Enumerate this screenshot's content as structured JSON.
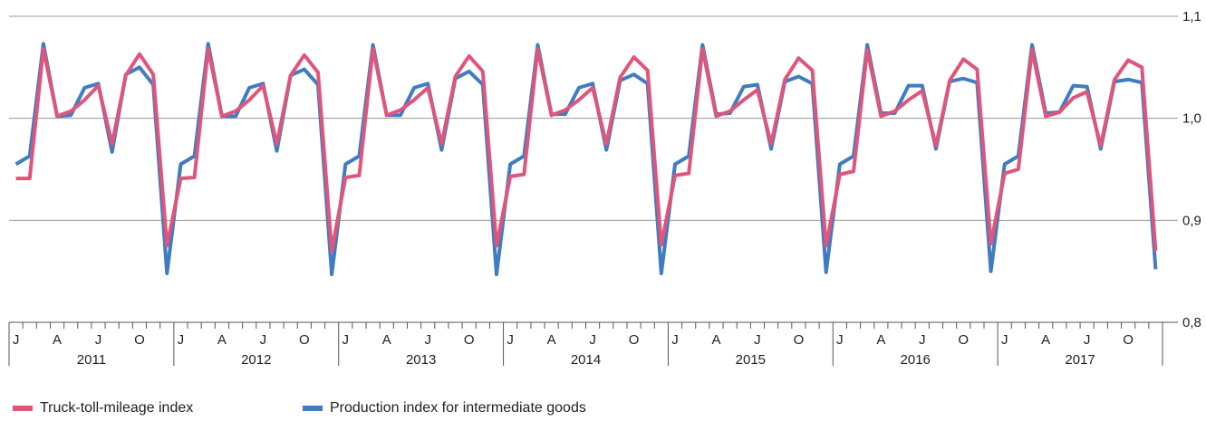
{
  "chart_data": {
    "type": "line",
    "title": "",
    "xlabel": "",
    "ylabel": "",
    "ylim": [
      0.8,
      1.1
    ],
    "yticks": [
      "0,8",
      "0,9",
      "1,0",
      "1,1"
    ],
    "y_axis_side": "right",
    "grid": true,
    "month_labels": [
      "J",
      "",
      "",
      "A",
      "",
      "",
      "J",
      "",
      "",
      "O",
      "",
      ""
    ],
    "years": [
      "2011",
      "2012",
      "2013",
      "2014",
      "2015",
      "2016",
      "2017"
    ],
    "legend_placement": "bottom-left",
    "series": [
      {
        "name": "Truck-toll-mileage index",
        "color": "#e0557a",
        "values": [
          0.941,
          0.941,
          1.068,
          1.002,
          1.007,
          1.018,
          1.032,
          0.975,
          1.042,
          1.063,
          1.043,
          0.875,
          0.941,
          0.942,
          1.068,
          1.002,
          1.007,
          1.018,
          1.032,
          0.975,
          1.042,
          1.062,
          1.045,
          0.87,
          0.942,
          0.944,
          1.068,
          1.003,
          1.008,
          1.018,
          1.03,
          0.975,
          1.041,
          1.061,
          1.046,
          0.875,
          0.943,
          0.945,
          1.068,
          1.003,
          1.008,
          1.018,
          1.03,
          0.975,
          1.04,
          1.06,
          1.047,
          0.876,
          0.944,
          0.946,
          1.068,
          1.002,
          1.007,
          1.018,
          1.028,
          0.975,
          1.038,
          1.059,
          1.047,
          0.875,
          0.945,
          0.948,
          1.067,
          1.002,
          1.007,
          1.018,
          1.027,
          0.973,
          1.037,
          1.058,
          1.048,
          0.877,
          0.946,
          0.95,
          1.067,
          1.002,
          1.006,
          1.02,
          1.026,
          0.973,
          1.038,
          1.057,
          1.05,
          0.87
        ]
      },
      {
        "name": "Production index for intermediate goods",
        "color": "#3f7cc2",
        "values": [
          0.955,
          0.963,
          1.073,
          1.002,
          1.003,
          1.03,
          1.034,
          0.967,
          1.043,
          1.05,
          1.033,
          0.848,
          0.955,
          0.963,
          1.073,
          1.002,
          1.002,
          1.03,
          1.034,
          0.968,
          1.042,
          1.048,
          1.033,
          0.847,
          0.955,
          0.963,
          1.072,
          1.003,
          1.003,
          1.03,
          1.034,
          0.969,
          1.039,
          1.046,
          1.033,
          0.847,
          0.955,
          0.963,
          1.072,
          1.004,
          1.004,
          1.03,
          1.034,
          0.969,
          1.037,
          1.043,
          1.034,
          0.848,
          0.955,
          0.963,
          1.072,
          1.004,
          1.005,
          1.031,
          1.033,
          0.97,
          1.036,
          1.041,
          1.034,
          0.849,
          0.955,
          0.963,
          1.072,
          1.005,
          1.005,
          1.032,
          1.032,
          0.97,
          1.036,
          1.039,
          1.035,
          0.85,
          0.955,
          0.963,
          1.072,
          1.005,
          1.006,
          1.032,
          1.031,
          0.97,
          1.036,
          1.038,
          1.035,
          0.852
        ]
      }
    ]
  }
}
